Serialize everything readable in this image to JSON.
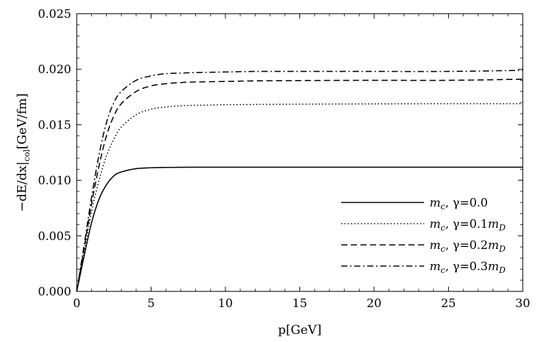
{
  "chart_data": {
    "type": "line",
    "xlabel": "p[GeV]",
    "ylabel_parts": {
      "main": "−dE/dx|",
      "sub": "col",
      "tail": "[GeV/fm]"
    },
    "xlim": [
      0,
      30
    ],
    "ylim": [
      0,
      0.025
    ],
    "xticks": [
      0,
      5,
      10,
      15,
      20,
      25,
      30
    ],
    "xtick_labels": [
      "0",
      "5",
      "10",
      "15",
      "20",
      "25",
      "30"
    ],
    "yticks": [
      0,
      0.005,
      0.01,
      0.015,
      0.02,
      0.025
    ],
    "ytick_labels": [
      "0.000",
      "0.005",
      "0.010",
      "0.015",
      "0.020",
      "0.025"
    ],
    "grid": false,
    "legend_position": "bottom-right",
    "x": [
      0,
      0.5,
      1,
      1.5,
      2,
      2.5,
      3,
      4,
      5,
      6,
      7,
      8,
      10,
      12,
      15,
      20,
      25,
      30
    ],
    "series": [
      {
        "name": "m_c, γ=0.0",
        "legend": {
          "m": "m",
          "m_sub": "c",
          "mid": ", γ=0.0",
          "tail": "",
          "tail_sub": ""
        },
        "dash": "solid",
        "values": [
          0,
          0.0032,
          0.0062,
          0.0083,
          0.0096,
          0.0104,
          0.01075,
          0.01105,
          0.01113,
          0.01116,
          0.01117,
          0.01118,
          0.01118,
          0.01118,
          0.01118,
          0.01118,
          0.01118,
          0.01118
        ]
      },
      {
        "name": "m_c, γ=0.1m_D",
        "legend": {
          "m": "m",
          "m_sub": "c",
          "mid": ", γ=0.1",
          "tail": "m",
          "tail_sub": "D"
        },
        "dash": "dotted",
        "values": [
          0,
          0.0036,
          0.0072,
          0.01,
          0.0122,
          0.0137,
          0.0148,
          0.0159,
          0.0164,
          0.0166,
          0.0167,
          0.01675,
          0.0168,
          0.01683,
          0.01685,
          0.01688,
          0.0169,
          0.0169
        ]
      },
      {
        "name": "m_c, γ=0.2m_D",
        "legend": {
          "m": "m",
          "m_sub": "c",
          "mid": ", γ=0.2",
          "tail": "m",
          "tail_sub": "D"
        },
        "dash": "dashed",
        "values": [
          0,
          0.0039,
          0.0079,
          0.0113,
          0.014,
          0.0158,
          0.0169,
          0.018,
          0.0185,
          0.0187,
          0.0188,
          0.01885,
          0.0189,
          0.01895,
          0.01898,
          0.019,
          0.019,
          0.0191
        ]
      },
      {
        "name": "m_c, γ=0.3m_D",
        "legend": {
          "m": "m",
          "m_sub": "c",
          "mid": ", γ=0.3",
          "tail": "m",
          "tail_sub": "D"
        },
        "dash": "dashdot",
        "values": [
          0,
          0.0042,
          0.0085,
          0.0123,
          0.0152,
          0.017,
          0.018,
          0.019,
          0.0194,
          0.0196,
          0.01965,
          0.0197,
          0.01975,
          0.0198,
          0.0198,
          0.0198,
          0.0198,
          0.0199
        ]
      }
    ]
  }
}
